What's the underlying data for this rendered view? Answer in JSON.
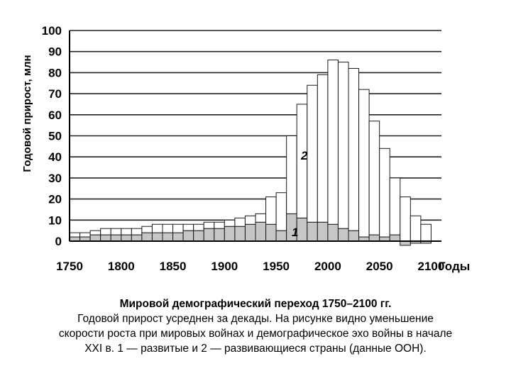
{
  "chart_data": {
    "type": "bar",
    "ylabel": "Годовой прирост, млн",
    "xlabel": "Годы",
    "ylim": [
      0,
      100
    ],
    "yticks": [
      0,
      10,
      20,
      30,
      40,
      50,
      60,
      70,
      80,
      90,
      100
    ],
    "xticks": [
      1750,
      1800,
      1850,
      1900,
      1950,
      2000,
      2050,
      2100
    ],
    "xlim": [
      1750,
      2110
    ],
    "bar_width": 10,
    "stacked": true,
    "x": [
      1750,
      1760,
      1770,
      1780,
      1790,
      1800,
      1810,
      1820,
      1830,
      1840,
      1850,
      1860,
      1870,
      1880,
      1890,
      1900,
      1910,
      1920,
      1930,
      1940,
      1950,
      1960,
      1970,
      1980,
      1990,
      2000,
      2010,
      2020,
      2030,
      2040,
      2050,
      2060,
      2070,
      2080,
      2090
    ],
    "series": [
      {
        "name": "1",
        "values": [
          2,
          2,
          3,
          3,
          3,
          3,
          3,
          4,
          4,
          4,
          4,
          5,
          5,
          6,
          6,
          7,
          7,
          8,
          9,
          8,
          5,
          13,
          11,
          9,
          9,
          8,
          6,
          5,
          2,
          3,
          2,
          3,
          -2,
          -1,
          -1
        ]
      },
      {
        "name": "2",
        "values": [
          2,
          2,
          2,
          3,
          3,
          3,
          3,
          3,
          4,
          4,
          4,
          3,
          3,
          3,
          3,
          3,
          4,
          4,
          4,
          13,
          18,
          37,
          54,
          65,
          70,
          78,
          79,
          77,
          70,
          54,
          42,
          27,
          21,
          12,
          8
        ]
      }
    ],
    "series_labels": [
      "1",
      "2"
    ],
    "grid": true,
    "colors": {
      "series1": "#c6c6c6",
      "series2": "#ffffff",
      "edge": "#1a1a1a",
      "grid": "#222222"
    }
  },
  "caption": {
    "title": "Мировой демографический переход 1750–2100 гг.",
    "lines": [
      "Годовой прирост усреднен за декады. На рисунке видно уменьшение",
      "скорости роста при мировых войнах и демографическое эхо войны в начале",
      "XXI в. 1 — развитые и 2 — развивающиеся страны (данные ООН)."
    ]
  }
}
